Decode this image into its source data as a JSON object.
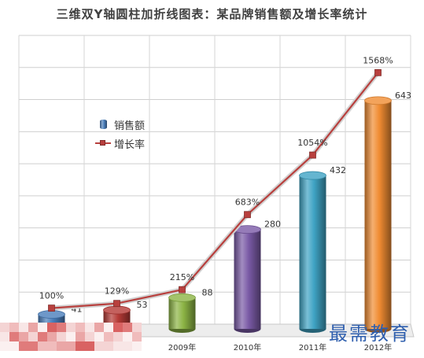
{
  "chart_data": {
    "type": "bar",
    "title": "三维双Y轴圆柱加折线图表：某品牌销售额及增长率统计",
    "categories": [
      "",
      "",
      "2009年",
      "2010年",
      "2011年",
      "2012年"
    ],
    "series": [
      {
        "name": "销售额",
        "type": "bar",
        "axis": "primary",
        "values": [
          41,
          53,
          88,
          280,
          432,
          643
        ],
        "color": "#4a7ebb",
        "point_colors": [
          "#4a7ebb",
          "#b53a36",
          "#8cb445",
          "#7a5aa6",
          "#3fa3c4",
          "#f08c32"
        ]
      },
      {
        "name": "增长率",
        "type": "line",
        "axis": "secondary",
        "values": [
          100,
          129,
          215,
          683,
          1054,
          1568
        ],
        "labels": [
          "100%",
          "129%",
          "215%",
          "683%",
          "1054%",
          "1568%"
        ],
        "color": "#b8403e"
      }
    ],
    "ylim": [
      0,
      800
    ],
    "y2lim": [
      0,
      1800
    ],
    "y2_gridline_step": 200,
    "grid": true,
    "legend": "upper-left"
  },
  "watermark": {
    "text": "最需教育",
    "color": "#2f5fae"
  }
}
